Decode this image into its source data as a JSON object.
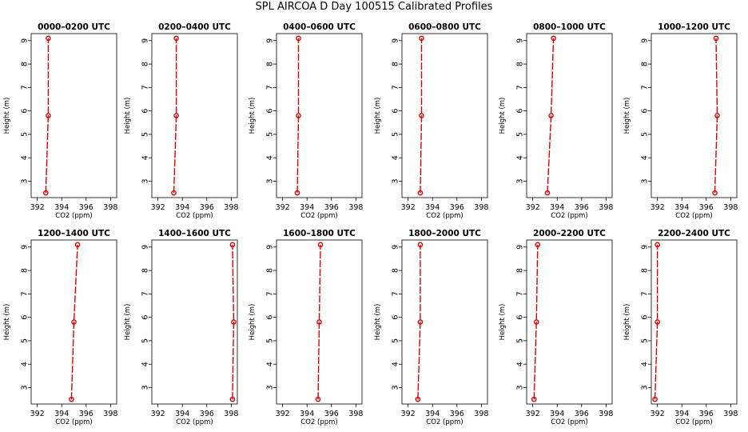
{
  "page_title": "SPL AIRCOA D  Day 100515  Calibrated Profiles",
  "colors": {
    "profile": "#e00000",
    "axis": "#000000",
    "background": "#ffffff"
  },
  "chart_data": [
    {
      "type": "line",
      "title": "0000–0200 UTC",
      "xlabel": "CO2 (ppm)",
      "ylabel": "Height (m)",
      "xlim": [
        391.5,
        398.5
      ],
      "ylim": [
        2.3,
        9.3
      ],
      "xticks": [
        392,
        394,
        396,
        398
      ],
      "yticks": [
        3,
        4,
        5,
        6,
        7,
        8,
        9
      ],
      "grid": false,
      "series": [
        {
          "x": [
            392.7,
            392.9,
            392.9
          ],
          "y": [
            2.5,
            5.8,
            9.1
          ]
        }
      ]
    },
    {
      "type": "line",
      "title": "0200–0400 UTC",
      "xlabel": "CO2 (ppm)",
      "ylabel": "Height (m)",
      "xlim": [
        391.5,
        398.5
      ],
      "ylim": [
        2.3,
        9.3
      ],
      "xticks": [
        392,
        394,
        396,
        398
      ],
      "yticks": [
        3,
        4,
        5,
        6,
        7,
        8,
        9
      ],
      "grid": false,
      "series": [
        {
          "x": [
            393.3,
            393.5,
            393.5
          ],
          "y": [
            2.5,
            5.8,
            9.1
          ]
        }
      ]
    },
    {
      "type": "line",
      "title": "0400–0600 UTC",
      "xlabel": "CO2 (ppm)",
      "ylabel": "Height (m)",
      "xlim": [
        391.5,
        398.5
      ],
      "ylim": [
        2.3,
        9.3
      ],
      "xticks": [
        392,
        394,
        396,
        398
      ],
      "yticks": [
        3,
        4,
        5,
        6,
        7,
        8,
        9
      ],
      "grid": false,
      "series": [
        {
          "x": [
            393.2,
            393.3,
            393.3
          ],
          "y": [
            2.5,
            5.8,
            9.1
          ]
        }
      ]
    },
    {
      "type": "line",
      "title": "0600–0800 UTC",
      "xlabel": "CO2 (ppm)",
      "ylabel": "Height (m)",
      "xlim": [
        391.5,
        398.5
      ],
      "ylim": [
        2.3,
        9.3
      ],
      "xticks": [
        392,
        394,
        396,
        398
      ],
      "yticks": [
        3,
        4,
        5,
        6,
        7,
        8,
        9
      ],
      "grid": false,
      "series": [
        {
          "x": [
            393.0,
            393.1,
            393.1
          ],
          "y": [
            2.5,
            5.8,
            9.1
          ]
        }
      ]
    },
    {
      "type": "line",
      "title": "0800–1000 UTC",
      "xlabel": "CO2 (ppm)",
      "ylabel": "Height (m)",
      "xlim": [
        391.5,
        398.5
      ],
      "ylim": [
        2.3,
        9.3
      ],
      "xticks": [
        392,
        394,
        396,
        398
      ],
      "yticks": [
        3,
        4,
        5,
        6,
        7,
        8,
        9
      ],
      "grid": false,
      "series": [
        {
          "x": [
            393.2,
            393.5,
            393.7
          ],
          "y": [
            2.5,
            5.8,
            9.1
          ]
        }
      ]
    },
    {
      "type": "line",
      "title": "1000–1200 UTC",
      "xlabel": "CO2 (ppm)",
      "ylabel": "Height (m)",
      "xlim": [
        391.5,
        398.5
      ],
      "ylim": [
        2.3,
        9.3
      ],
      "xticks": [
        392,
        394,
        396,
        398
      ],
      "yticks": [
        3,
        4,
        5,
        6,
        7,
        8,
        9
      ],
      "grid": false,
      "series": [
        {
          "x": [
            396.7,
            396.9,
            396.8
          ],
          "y": [
            2.5,
            5.8,
            9.1
          ]
        }
      ]
    },
    {
      "type": "line",
      "title": "1200–1400 UTC",
      "xlabel": "CO2 (ppm)",
      "ylabel": "Height (m)",
      "xlim": [
        391.5,
        398.5
      ],
      "ylim": [
        2.3,
        9.3
      ],
      "xticks": [
        392,
        394,
        396,
        398
      ],
      "yticks": [
        3,
        4,
        5,
        6,
        7,
        8,
        9
      ],
      "grid": false,
      "series": [
        {
          "x": [
            394.8,
            395.0,
            395.3
          ],
          "y": [
            2.5,
            5.8,
            9.1
          ]
        }
      ]
    },
    {
      "type": "line",
      "title": "1400–1600 UTC",
      "xlabel": "CO2 (ppm)",
      "ylabel": "Height (m)",
      "xlim": [
        391.5,
        398.5
      ],
      "ylim": [
        2.3,
        9.3
      ],
      "xticks": [
        392,
        394,
        396,
        398
      ],
      "yticks": [
        3,
        4,
        5,
        6,
        7,
        8,
        9
      ],
      "grid": false,
      "series": [
        {
          "x": [
            398.1,
            398.2,
            398.1
          ],
          "y": [
            2.5,
            5.8,
            9.1
          ]
        }
      ]
    },
    {
      "type": "line",
      "title": "1600–1800 UTC",
      "xlabel": "CO2 (ppm)",
      "ylabel": "Height (m)",
      "xlim": [
        391.5,
        398.5
      ],
      "ylim": [
        2.3,
        9.3
      ],
      "xticks": [
        392,
        394,
        396,
        398
      ],
      "yticks": [
        3,
        4,
        5,
        6,
        7,
        8,
        9
      ],
      "grid": false,
      "series": [
        {
          "x": [
            394.9,
            395.0,
            395.1
          ],
          "y": [
            2.5,
            5.8,
            9.1
          ]
        }
      ]
    },
    {
      "type": "line",
      "title": "1800–2000 UTC",
      "xlabel": "CO2 (ppm)",
      "ylabel": "Height (m)",
      "xlim": [
        391.5,
        398.5
      ],
      "ylim": [
        2.3,
        9.3
      ],
      "xticks": [
        392,
        394,
        396,
        398
      ],
      "yticks": [
        3,
        4,
        5,
        6,
        7,
        8,
        9
      ],
      "grid": false,
      "series": [
        {
          "x": [
            392.8,
            393.0,
            393.0
          ],
          "y": [
            2.5,
            5.8,
            9.1
          ]
        }
      ]
    },
    {
      "type": "line",
      "title": "2000–2200 UTC",
      "xlabel": "CO2 (ppm)",
      "ylabel": "Height (m)",
      "xlim": [
        391.5,
        398.5
      ],
      "ylim": [
        2.3,
        9.3
      ],
      "xticks": [
        392,
        394,
        396,
        398
      ],
      "yticks": [
        3,
        4,
        5,
        6,
        7,
        8,
        9
      ],
      "grid": false,
      "series": [
        {
          "x": [
            392.1,
            392.3,
            392.4
          ],
          "y": [
            2.5,
            5.8,
            9.1
          ]
        }
      ]
    },
    {
      "type": "line",
      "title": "2200–2400 UTC",
      "xlabel": "CO2 (ppm)",
      "ylabel": "Height (m)",
      "xlim": [
        391.5,
        398.5
      ],
      "ylim": [
        2.3,
        9.3
      ],
      "xticks": [
        392,
        394,
        396,
        398
      ],
      "yticks": [
        3,
        4,
        5,
        6,
        7,
        8,
        9
      ],
      "grid": false,
      "series": [
        {
          "x": [
            391.8,
            392.0,
            392.0
          ],
          "y": [
            2.5,
            5.8,
            9.1
          ]
        }
      ]
    }
  ]
}
